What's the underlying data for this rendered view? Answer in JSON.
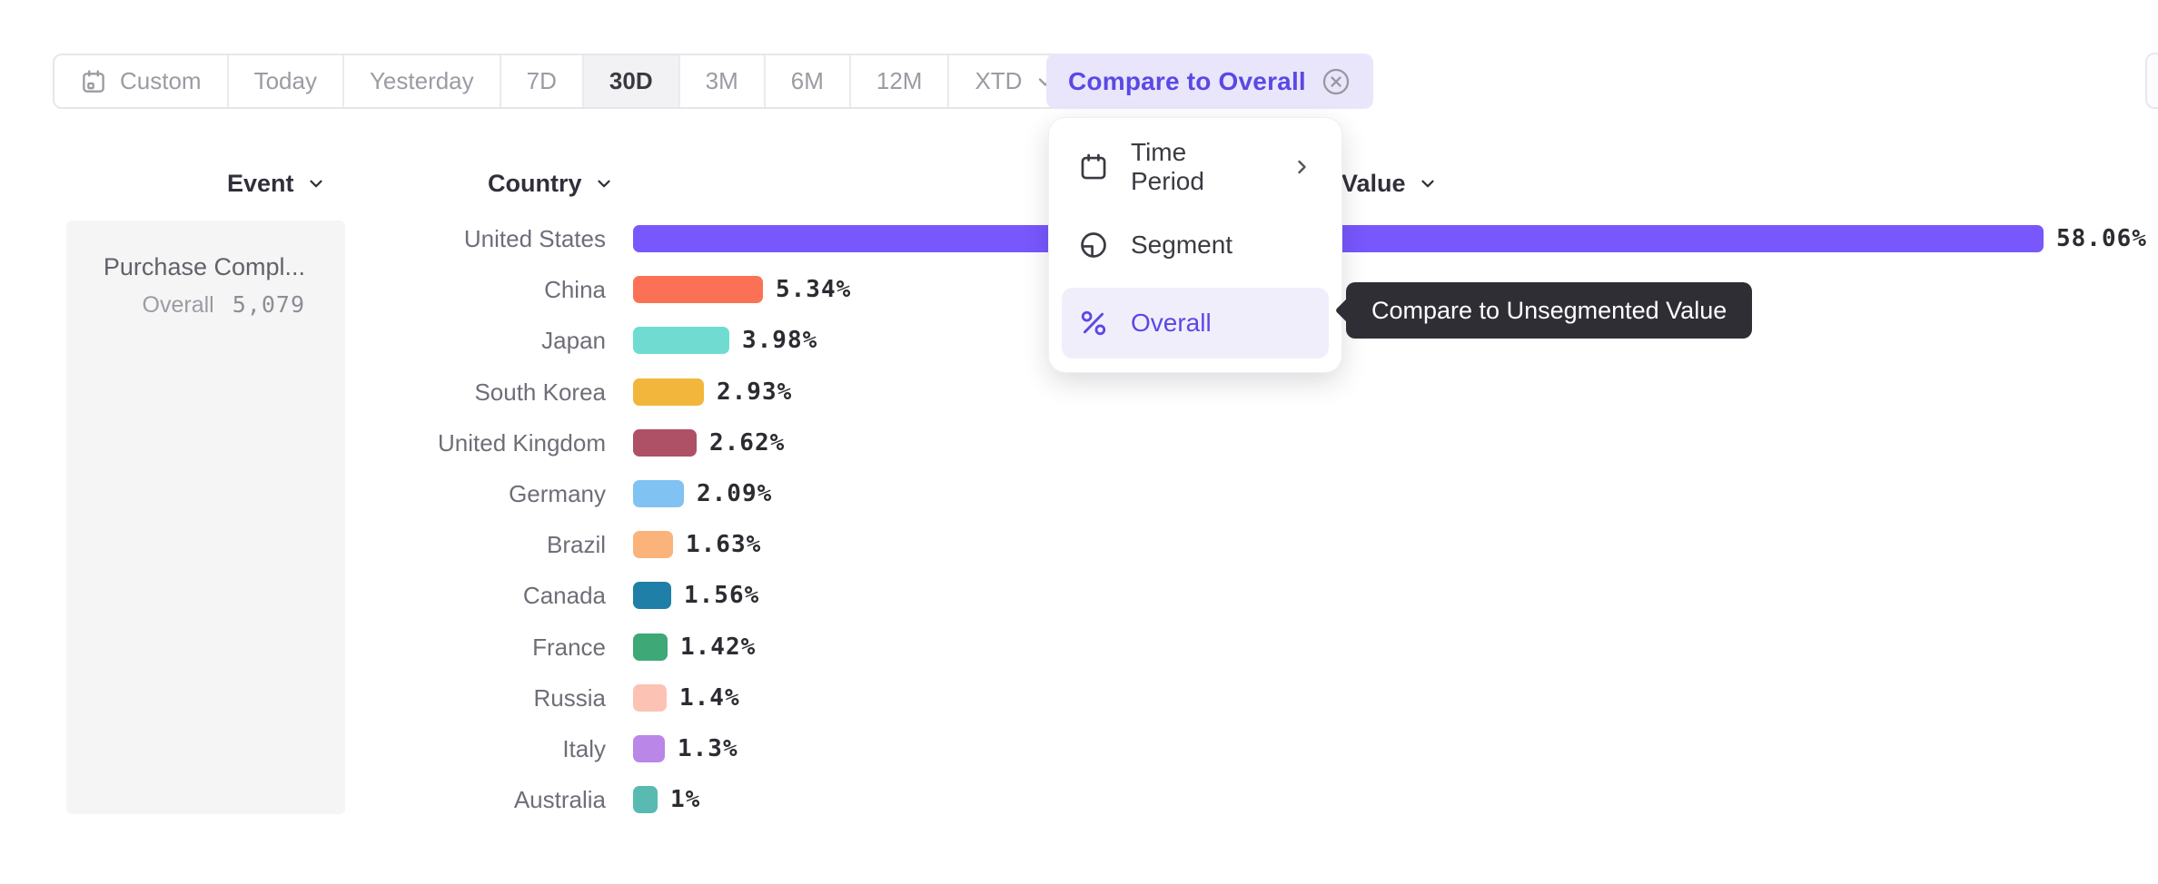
{
  "toolbar": {
    "time_buttons": [
      {
        "label": "Custom",
        "icon": "calendar-icon"
      },
      {
        "label": "Today"
      },
      {
        "label": "Yesterday"
      },
      {
        "label": "7D"
      },
      {
        "label": "30D",
        "selected": true
      },
      {
        "label": "3M"
      },
      {
        "label": "6M"
      },
      {
        "label": "12M"
      },
      {
        "label": "XTD",
        "icon_right": "chevron-down-icon"
      }
    ],
    "selected_range": "30D",
    "compare_button": {
      "label": "Compare to Overall",
      "close_icon": "circle-x-icon"
    }
  },
  "menu": {
    "items": [
      {
        "label": "Time Period",
        "icon": "calendar-icon",
        "has_submenu": true
      },
      {
        "label": "Segment",
        "icon": "segment-icon",
        "has_submenu": false
      },
      {
        "label": "Overall",
        "icon": "percent-icon",
        "has_submenu": false,
        "selected": true
      }
    ]
  },
  "tooltip": {
    "text": "Compare to Unsegmented Value"
  },
  "table": {
    "columns": [
      {
        "label": "Event"
      },
      {
        "label": "Country"
      },
      {
        "label": "Value"
      }
    ],
    "event_panel": {
      "title": "Purchase Compl...",
      "overall_label": "Overall",
      "overall_value": "5,079"
    }
  },
  "chart_data": {
    "type": "bar",
    "orientation": "horizontal",
    "title": "",
    "xlabel": "Value",
    "ylabel": "Country",
    "xlim": [
      0,
      58.06
    ],
    "grid": false,
    "categories": [
      "United States",
      "China",
      "Japan",
      "South Korea",
      "United Kingdom",
      "Germany",
      "Brazil",
      "Canada",
      "France",
      "Russia",
      "Italy",
      "Australia"
    ],
    "values": [
      58.06,
      5.34,
      3.98,
      2.93,
      2.62,
      2.09,
      1.63,
      1.56,
      1.42,
      1.4,
      1.3,
      1
    ],
    "value_labels": [
      "58.06%",
      "5.34%",
      "3.98%",
      "2.93%",
      "2.62%",
      "2.09%",
      "1.63%",
      "1.56%",
      "1.42%",
      "1.4%",
      "1.3%",
      "1%"
    ],
    "bar_colors": [
      "#7857fd",
      "#fb7156",
      "#70dcd1",
      "#f2b63c",
      "#ae5066",
      "#80c2f1",
      "#fab37b",
      "#1f7fa6",
      "#3ea876",
      "#fcc2b4",
      "#ba86e8",
      "#59bab1"
    ]
  },
  "colors": {
    "accent_purple": "#5a48e6",
    "compare_button_bg": "#e9e6fb",
    "menu_selected_bg": "#f1eefb",
    "tooltip_bg": "#2f2e34",
    "toolbar_selected_bg": "#f2f2f4",
    "event_panel_bg": "#f5f5f6",
    "label_gray": "#6e6e78",
    "value_text": "#2b2b31"
  }
}
